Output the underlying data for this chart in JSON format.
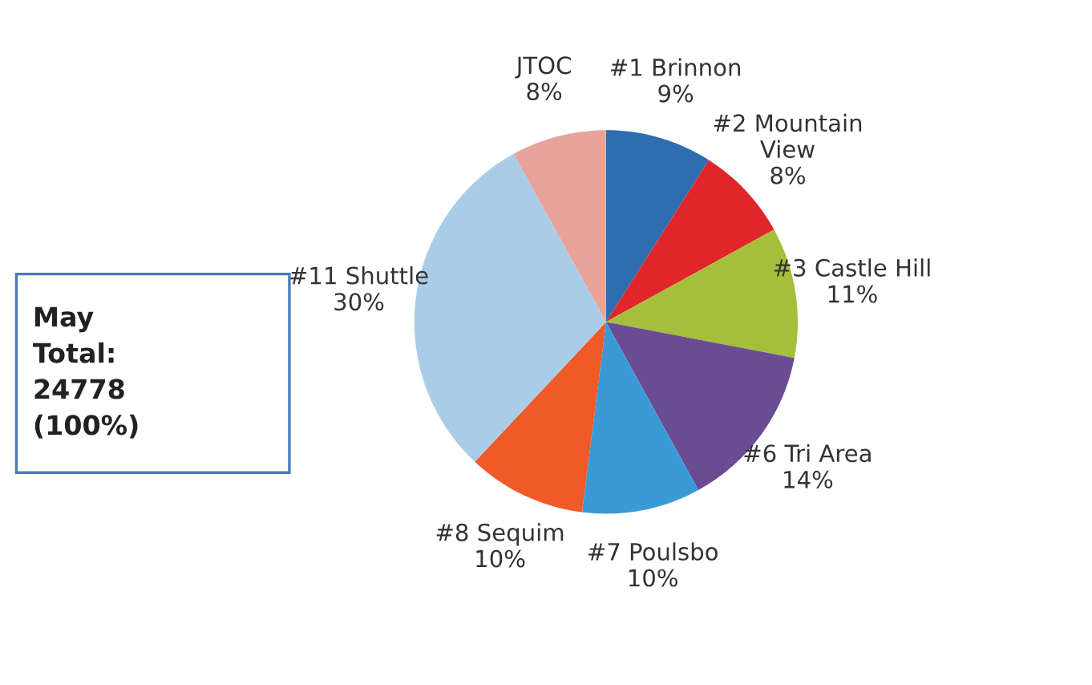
{
  "chart_data": {
    "type": "pie",
    "categories": [
      "#1 Brinnon",
      "#2 Mountain\nView",
      "#3 Castle Hill",
      "#6 Tri Area",
      "#7 Poulsbo",
      "#8 Sequim",
      "#11 Shuttle",
      "JTOC"
    ],
    "values": [
      9,
      8,
      11,
      14,
      10,
      10,
      30,
      8
    ],
    "value_labels": [
      "9%",
      "8%",
      "11%",
      "14%",
      "10%",
      "10%",
      "30%",
      "8%"
    ],
    "colors": [
      "#2e6db0",
      "#e0262a",
      "#a6bf3a",
      "#6a4c93",
      "#3a9ad6",
      "#f05a28",
      "#a9cde8",
      "#e8a49a"
    ],
    "annotations": [
      "May\nTotal:\n24778\n(100%)"
    ],
    "legend": false
  }
}
